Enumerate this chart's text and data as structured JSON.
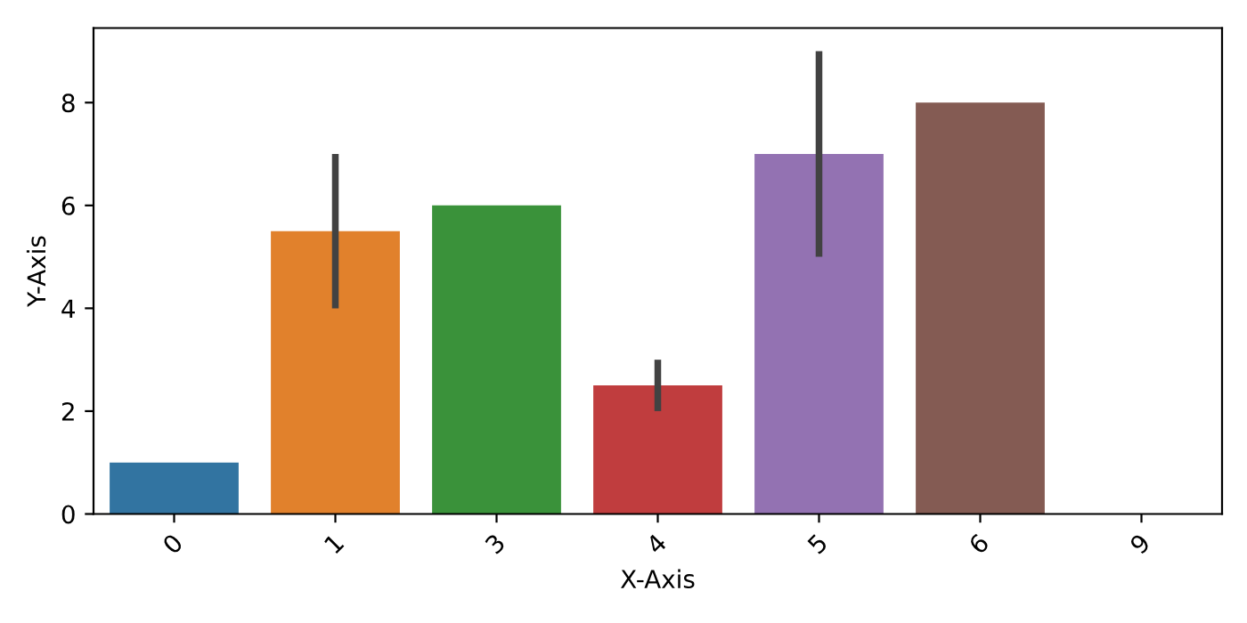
{
  "chart_data": {
    "type": "bar",
    "xlabel": "X-Axis",
    "ylabel": "Y-Axis",
    "categories": [
      "0",
      "1",
      "3",
      "4",
      "5",
      "6",
      "9"
    ],
    "values": [
      1,
      5.5,
      6,
      2.5,
      7,
      8,
      0
    ],
    "errors": [
      null,
      [
        4,
        7
      ],
      null,
      [
        2,
        3
      ],
      [
        5,
        9
      ],
      null,
      null
    ],
    "colors": [
      "#3274a1",
      "#e1812c",
      "#3a923a",
      "#c03d3e",
      "#9372b2",
      "#845b53",
      "#d684bd"
    ],
    "ylim": [
      0,
      9.45
    ],
    "yticks": [
      0,
      2,
      4,
      6,
      8
    ],
    "grid": false
  }
}
